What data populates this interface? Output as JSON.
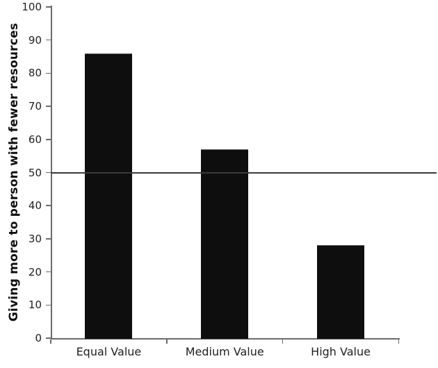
{
  "chart_data": {
    "type": "bar",
    "title": "",
    "categories": [
      "Equal Value",
      "Medium Value",
      "High Value"
    ],
    "values": [
      86,
      57,
      28
    ],
    "xlabel": "",
    "ylabel": "Giving more to person with fewer resources",
    "ylim": [
      0,
      100
    ],
    "yticks": [
      0,
      10,
      20,
      30,
      40,
      50,
      60,
      70,
      80,
      90,
      100
    ],
    "reference_line_y": 50,
    "grid": false,
    "legend_position": "none",
    "bar_color": "#0e0e0e",
    "axis_color": "#6b6b6b",
    "reference_line_color": "#3a3a3a",
    "text_color": "#1f1f1f"
  }
}
